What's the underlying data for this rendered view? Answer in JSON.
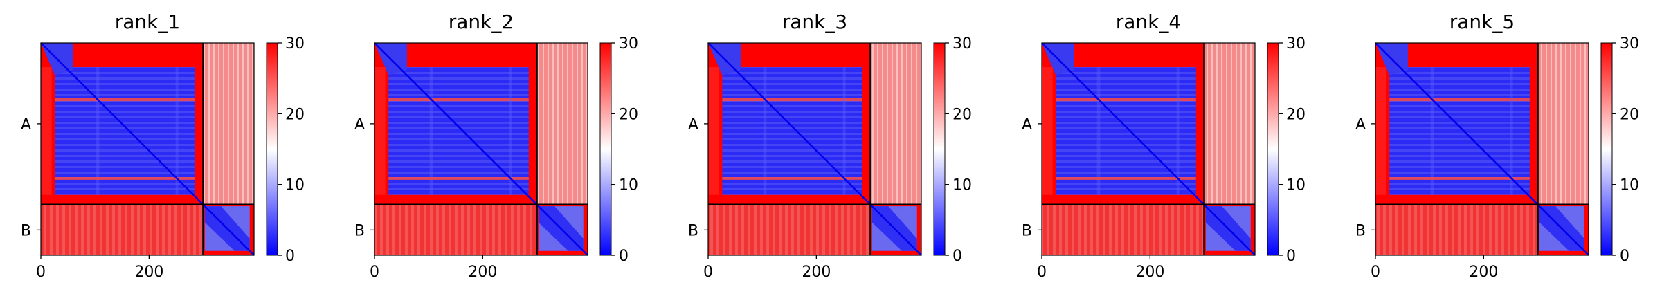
{
  "chart_data": [
    {
      "type": "heatmap",
      "title": "rank_1",
      "chains": [
        "A",
        "B"
      ],
      "chain_boundary": 300,
      "length": 394,
      "xticks": [
        0,
        200
      ],
      "xlim": [
        0,
        394
      ],
      "colorbar": {
        "ticks": [
          0,
          10,
          20,
          30
        ],
        "range": [
          0,
          30
        ],
        "colormap": "bwr"
      }
    },
    {
      "type": "heatmap",
      "title": "rank_2",
      "chains": [
        "A",
        "B"
      ],
      "chain_boundary": 300,
      "length": 394,
      "xticks": [
        0,
        200
      ],
      "xlim": [
        0,
        394
      ],
      "colorbar": {
        "ticks": [
          0,
          10,
          20,
          30
        ],
        "range": [
          0,
          30
        ],
        "colormap": "bwr"
      }
    },
    {
      "type": "heatmap",
      "title": "rank_3",
      "chains": [
        "A",
        "B"
      ],
      "chain_boundary": 300,
      "length": 394,
      "xticks": [
        0,
        200
      ],
      "xlim": [
        0,
        394
      ],
      "colorbar": {
        "ticks": [
          0,
          10,
          20,
          30
        ],
        "range": [
          0,
          30
        ],
        "colormap": "bwr"
      }
    },
    {
      "type": "heatmap",
      "title": "rank_4",
      "chains": [
        "A",
        "B"
      ],
      "chain_boundary": 300,
      "length": 394,
      "xticks": [
        0,
        200
      ],
      "xlim": [
        0,
        394
      ],
      "colorbar": {
        "ticks": [
          0,
          10,
          20,
          30
        ],
        "range": [
          0,
          30
        ],
        "colormap": "bwr"
      }
    },
    {
      "type": "heatmap",
      "title": "rank_5",
      "chains": [
        "A",
        "B"
      ],
      "chain_boundary": 300,
      "length": 394,
      "xticks": [
        0,
        200
      ],
      "xlim": [
        0,
        394
      ],
      "colorbar": {
        "ticks": [
          0,
          10,
          20,
          30
        ],
        "range": [
          0,
          30
        ],
        "colormap": "bwr"
      }
    }
  ]
}
